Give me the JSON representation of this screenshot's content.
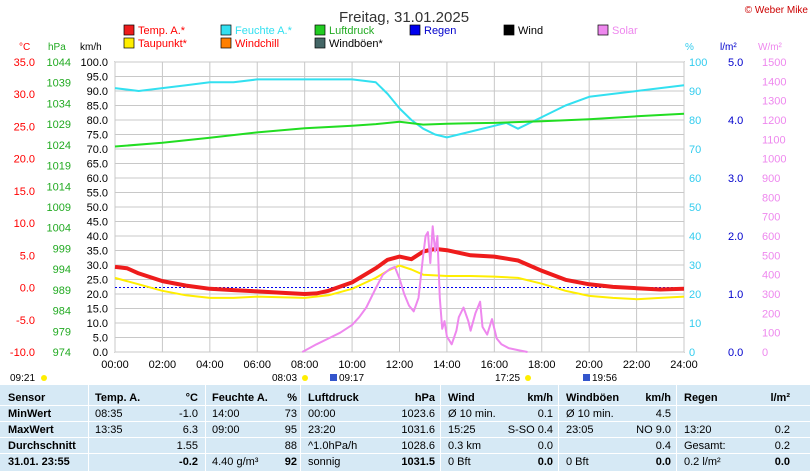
{
  "header": {
    "title": "Freitag, 31.01.2025",
    "copyright": "© Weber Mike"
  },
  "legend": [
    {
      "label": "Temp. A.*",
      "color": "#ee1c1c",
      "textColor": "#ff0000"
    },
    {
      "label": "Feuchte A.*",
      "color": "#33e0f0",
      "textColor": "#33e0f0"
    },
    {
      "label": "Luftdruck",
      "color": "#22cc22",
      "textColor": "#22aa22"
    },
    {
      "label": "Regen",
      "color": "#0000ee",
      "textColor": "#0000cc"
    },
    {
      "label": "Wind",
      "color": "#000000",
      "textColor": "#000000"
    },
    {
      "label": "Solar",
      "color": "#ee88ee",
      "textColor": "#ee88ee"
    },
    {
      "label": "Taupunkt*",
      "color": "#ffee00",
      "textColor": "#ff0000"
    },
    {
      "label": "Windchill",
      "color": "#ff7f00",
      "textColor": "#ff0000"
    },
    {
      "label": "Windböen*",
      "color": "#446666",
      "textColor": "#000000"
    }
  ],
  "axis_units": {
    "temp": "°C",
    "press": "hPa",
    "wind": "km/h",
    "hum": "%",
    "rain": "l/m²",
    "solar": "W/m²"
  },
  "times": {
    "sunrise": "08:03",
    "sunset": "17:25",
    "moonrise": "09:17",
    "moonset": "19:56",
    "left": "09:21"
  },
  "chart_data": {
    "type": "line",
    "x_ticks": [
      "00:00",
      "02:00",
      "04:00",
      "06:00",
      "08:00",
      "10:00",
      "12:00",
      "14:00",
      "16:00",
      "18:00",
      "20:00",
      "22:00",
      "24:00"
    ],
    "xlim": [
      0,
      24
    ],
    "axes": {
      "temp": {
        "ticks": [
          "35.0",
          "30.0",
          "25.0",
          "20.0",
          "15.0",
          "10.0",
          "5.0",
          "0.0",
          "-5.0",
          "-10.0"
        ],
        "ylim": [
          -10,
          35
        ]
      },
      "press": {
        "ticks": [
          "1044",
          "1039",
          "1034",
          "1029",
          "1024",
          "1019",
          "1014",
          "1009",
          "1004",
          "999",
          "994",
          "989",
          "984",
          "979",
          "974"
        ],
        "ylim": [
          974,
          1044
        ]
      },
      "wind": {
        "ticks": [
          "100.0",
          "95.0",
          "90.0",
          "85.0",
          "80.0",
          "75.0",
          "70.0",
          "65.0",
          "60.0",
          "55.0",
          "50.0",
          "45.0",
          "40.0",
          "35.0",
          "30.0",
          "25.0",
          "20.0",
          "15.0",
          "10.0",
          "5.0",
          "0.0"
        ],
        "ylim": [
          0,
          100
        ]
      },
      "hum": {
        "ticks": [
          "100",
          "90",
          "80",
          "70",
          "60",
          "50",
          "40",
          "30",
          "20",
          "10",
          "0"
        ],
        "ylim": [
          0,
          100
        ]
      },
      "rain": {
        "ticks": [
          "5.0",
          "4.0",
          "3.0",
          "2.0",
          "1.0",
          "0.0"
        ],
        "ylim": [
          0,
          5
        ]
      },
      "solar": {
        "ticks": [
          "1500",
          "1400",
          "1300",
          "1200",
          "1100",
          "1000",
          "900",
          "800",
          "700",
          "600",
          "500",
          "400",
          "300",
          "200",
          "100",
          "0"
        ],
        "ylim": [
          0,
          1500
        ]
      }
    },
    "series": [
      {
        "name": "Temp. A.*",
        "axis": "temp",
        "color": "#ee1c1c",
        "width": 4,
        "x": [
          0,
          0.5,
          1,
          2,
          3,
          4,
          5,
          6,
          7,
          8,
          8.5,
          9,
          10,
          11,
          11.5,
          12,
          12.5,
          13,
          13.5,
          14,
          15,
          16,
          17,
          18,
          19,
          20,
          21,
          22,
          23,
          24
        ],
        "y": [
          3.2,
          3.0,
          2.2,
          1.0,
          0.3,
          -0.2,
          -0.4,
          -0.6,
          -0.8,
          -1.0,
          -0.9,
          -0.5,
          0.8,
          3.0,
          4.3,
          4.8,
          4.4,
          5.6,
          6.0,
          5.8,
          5.0,
          4.8,
          4.2,
          2.6,
          1.2,
          0.5,
          0.1,
          -0.1,
          -0.3,
          -0.2
        ]
      },
      {
        "name": "Taupunkt*",
        "axis": "temp",
        "color": "#ffee00",
        "width": 2,
        "x": [
          0,
          1,
          2,
          3,
          4,
          5,
          6,
          7,
          8,
          9,
          10,
          11,
          11.5,
          12,
          12.5,
          13,
          14,
          15,
          16,
          17,
          18,
          19,
          20,
          21,
          22,
          23,
          24
        ],
        "y": [
          1.5,
          0.5,
          -0.5,
          -1.2,
          -1.6,
          -1.6,
          -1.4,
          -1.5,
          -1.6,
          -1.2,
          -0.2,
          1.5,
          2.6,
          3.4,
          2.8,
          2.0,
          1.8,
          1.8,
          1.7,
          1.5,
          0.6,
          -0.5,
          -1.3,
          -1.6,
          -1.8,
          -1.6,
          -1.4
        ]
      },
      {
        "name": "Feuchte A.*",
        "axis": "hum",
        "color": "#33e0f0",
        "width": 2,
        "x": [
          0,
          1,
          2,
          3,
          4,
          5,
          6,
          7,
          8,
          9,
          10,
          11,
          11.5,
          12,
          12.5,
          13,
          13.5,
          14,
          15,
          16,
          16.5,
          17,
          18,
          19,
          20,
          21,
          22,
          23,
          24
        ],
        "y": [
          91,
          90,
          91,
          92,
          93,
          93,
          94,
          94,
          94,
          94,
          94,
          93,
          89,
          84,
          80,
          77,
          75,
          74,
          76,
          78,
          79,
          77,
          81,
          85,
          88,
          89,
          90,
          91,
          92
        ]
      },
      {
        "name": "Luftdruck",
        "axis": "press",
        "color": "#22dd22",
        "width": 2,
        "x": [
          0,
          2,
          4,
          6,
          8,
          10,
          11,
          12,
          13,
          14,
          15,
          16,
          18,
          20,
          22,
          24
        ],
        "y": [
          1023.6,
          1024.5,
          1025.7,
          1027.0,
          1028.0,
          1028.6,
          1029.0,
          1029.6,
          1028.9,
          1029.1,
          1029.2,
          1029.3,
          1029.7,
          1030.2,
          1030.9,
          1031.5
        ]
      },
      {
        "name": "Solar",
        "axis": "solar",
        "color": "#ee88ee",
        "width": 2,
        "x": [
          7.9,
          8.5,
          9,
          9.5,
          10,
          10.3,
          10.6,
          11,
          11.3,
          11.6,
          11.8,
          12,
          12.2,
          12.4,
          12.6,
          12.8,
          13.0,
          13.1,
          13.2,
          13.3,
          13.4,
          13.5,
          13.6,
          13.7,
          13.8,
          13.9,
          14.0,
          14.2,
          14.4,
          14.5,
          14.7,
          14.9,
          15.0,
          15.2,
          15.4,
          15.5,
          15.7,
          15.9,
          16.1,
          16.3,
          16.6,
          17.0,
          17.4
        ],
        "y": [
          0,
          40,
          70,
          100,
          140,
          180,
          230,
          330,
          400,
          430,
          440,
          380,
          300,
          240,
          210,
          280,
          500,
          600,
          620,
          460,
          650,
          520,
          600,
          280,
          120,
          160,
          80,
          40,
          110,
          180,
          230,
          160,
          110,
          200,
          260,
          130,
          90,
          170,
          70,
          40,
          20,
          10,
          0
        ]
      }
    ]
  },
  "stats": {
    "headers": [
      "Sensor",
      "Temp. A.",
      "°C",
      "Feuchte A.",
      "%",
      "Luftdruck",
      "hPa",
      "Wind",
      "km/h",
      "Windböen",
      "km/h",
      "Regen",
      "l/m²"
    ],
    "rows": [
      {
        "label": "MinWert",
        "cells": [
          "08:35",
          "-1.0",
          "14:00",
          "73",
          "00:00",
          "1023.6",
          "Ø 10 min.",
          "0.1",
          "Ø 10 min.",
          "4.5",
          "",
          ""
        ]
      },
      {
        "label": "MaxWert",
        "cells": [
          "13:35",
          "6.3",
          "09:00",
          "95",
          "23:20",
          "1031.6",
          "15:25",
          "S-SO 0.4",
          "23:05",
          "NO 9.0",
          "13:20",
          "0.2"
        ]
      },
      {
        "label": "Durchschnitt",
        "cells": [
          "",
          "1.55",
          "",
          "88",
          "^1.0hPa/h",
          "1028.6",
          "0.3 km",
          "0.0",
          "",
          "0.4",
          "Gesamt:",
          "0.2"
        ]
      },
      {
        "label": "31.01. 23:55",
        "cells": [
          "",
          "-0.2",
          "4.40 g/m³",
          "92",
          "sonnig",
          "1031.5",
          "0 Bft",
          "0.0",
          "0 Bft",
          "0.0",
          "0.2 l/m²",
          "0.0"
        ]
      }
    ]
  }
}
